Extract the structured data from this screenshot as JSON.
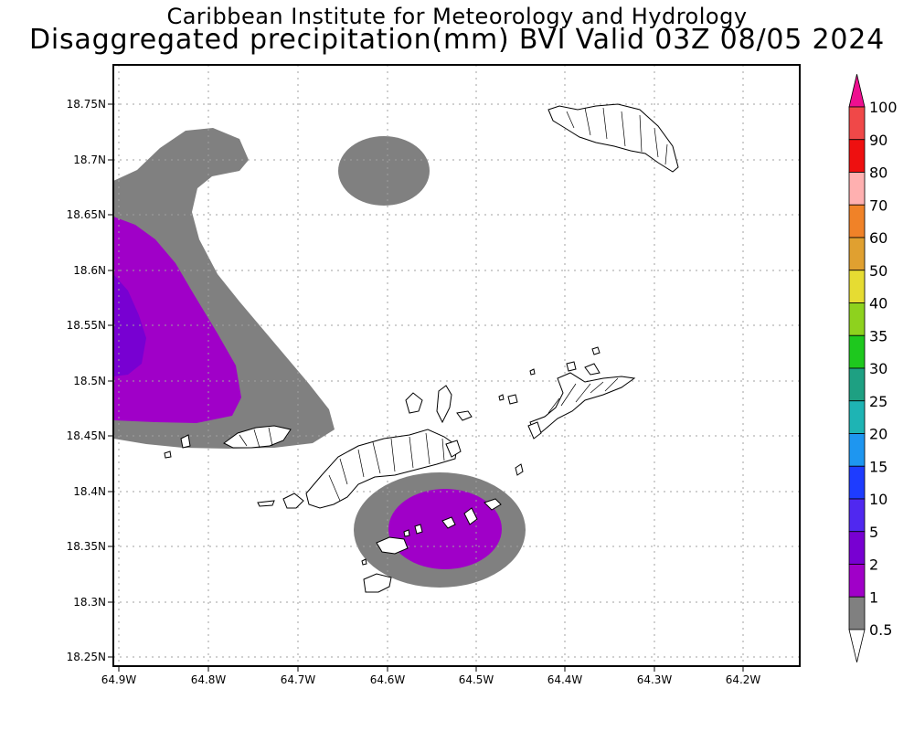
{
  "header": {
    "institution": "Caribbean Institute for Meteorology and Hydrology",
    "product": "Disaggregated precipitation(mm) BVI Valid 03Z 08/05 2024"
  },
  "axes": {
    "y_ticks": [
      "18.75N",
      "18.7N",
      "18.65N",
      "18.6N",
      "18.55N",
      "18.5N",
      "18.45N",
      "18.4N",
      "18.35N",
      "18.3N",
      "18.25N"
    ],
    "x_ticks": [
      "64.9W",
      "64.8W",
      "64.7W",
      "64.6W",
      "64.5W",
      "64.4W",
      "64.3W",
      "64.2W"
    ]
  },
  "colorbar": {
    "labels": [
      "100",
      "90",
      "80",
      "70",
      "60",
      "50",
      "40",
      "35",
      "30",
      "25",
      "20",
      "15",
      "10",
      "5",
      "2",
      "1",
      "0.5"
    ],
    "colors": [
      "#ee1090",
      "#f04848",
      "#ee1010",
      "#ffb0b0",
      "#f08228",
      "#e0a030",
      "#e6dc32",
      "#8ed21e",
      "#1ec81e",
      "#1ea082",
      "#1eb4b4",
      "#1e96f0",
      "#1e3cff",
      "#5028f0",
      "#7800d2",
      "#a000c8",
      "#808080",
      "#ffffff"
    ]
  },
  "chart_data": {
    "type": "heatmap",
    "title": "Disaggregated precipitation(mm) BVI Valid 03Z 08/05 2024",
    "subtitle": "Caribbean Institute for Meteorology and Hydrology",
    "units": "mm",
    "xlim": [
      "64.9W",
      "64.15W"
    ],
    "ylim": [
      "18.24N",
      "18.78N"
    ],
    "grid": true,
    "levels": [
      0.5,
      1,
      2,
      5,
      10,
      15,
      20,
      25,
      30,
      35,
      40,
      50,
      60,
      70,
      80,
      90,
      100
    ],
    "regions": [
      {
        "area": "west of Jost Van Dyke / St Thomas waters",
        "max_level_mm": "2-5"
      },
      {
        "area": "north-central waters near 18.7N 64.6W",
        "max_level_mm": "0.5-1"
      },
      {
        "area": "south of Tortola near Norman Island / Peter Island",
        "max_level_mm": "1-2"
      }
    ]
  }
}
